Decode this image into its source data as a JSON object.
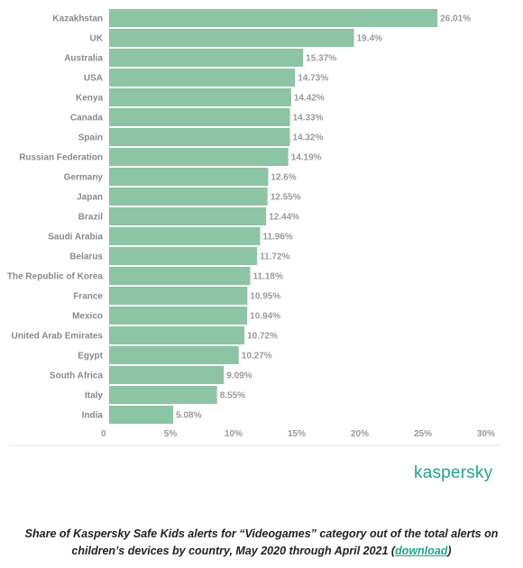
{
  "chart_data": {
    "type": "bar",
    "orientation": "horizontal",
    "categories": [
      "Kazakhstan",
      "UK",
      "Australia",
      "USA",
      "Kenya",
      "Canada",
      "Spain",
      "Russian Federation",
      "Germany",
      "Japan",
      "Brazil",
      "Saudi Arabia",
      "Belarus",
      "The Republic of Korea",
      "France",
      "Mexico",
      "United Arab Emirates",
      "Egypt",
      "South Africa",
      "Italy",
      "India"
    ],
    "values": [
      26.01,
      19.4,
      15.37,
      14.73,
      14.42,
      14.33,
      14.32,
      14.19,
      12.6,
      12.55,
      12.44,
      11.96,
      11.72,
      11.18,
      10.95,
      10.94,
      10.72,
      10.27,
      9.09,
      8.55,
      5.08
    ],
    "value_labels": [
      "26.01%",
      "19.4%",
      "15.37%",
      "14.73%",
      "14.42%",
      "14.33%",
      "14.32%",
      "14.19%",
      "12.6%",
      "12.55%",
      "12.44%",
      "11.96%",
      "11.72%",
      "11.18%",
      "10.95%",
      "10.94%",
      "10.72%",
      "10.27%",
      "9.09%",
      "8.55%",
      "5.08%"
    ],
    "xlim": [
      0,
      30
    ],
    "x_ticks": [
      "0",
      "5%",
      "10%",
      "15%",
      "20%",
      "25%",
      "30%"
    ],
    "grid": false,
    "bar_color": "#8cc4a4"
  },
  "logo": {
    "text": "kaspersky",
    "color": "#1fa68a"
  },
  "caption": {
    "text": "Share of Kaspersky Safe Kids alerts for “Videogames” category out of the total alerts on children’s devices by country, May 2020 through April 2021 (",
    "link": "download",
    "suffix": ")"
  }
}
